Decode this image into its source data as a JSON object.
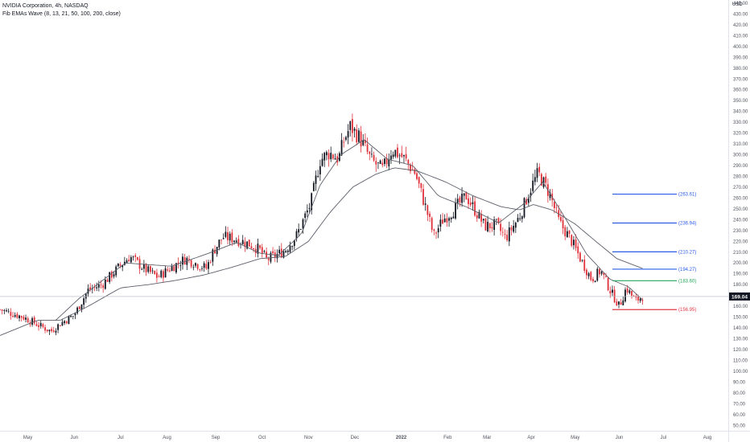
{
  "header": {
    "symbol_line": "NVIDIA Corporation, 4h, NASDAQ",
    "indicator_line": "Fib EMAs Wave (8, 13, 21, 50, 100, 200, close)"
  },
  "price_axis": {
    "currency": "USD"
  },
  "last_price": {
    "label": "169.04",
    "value": 169.04,
    "bg": "#131722",
    "fg": "#ffffff"
  },
  "colors": {
    "up": "#131722",
    "down": "#e0303a",
    "ema": "#5d606b",
    "blue_level": "#2b5ce6",
    "green_level": "#26a65b",
    "red_level": "#e53946",
    "grid": "#f0f3fa",
    "axis_text": "#50535e"
  },
  "chart_data": {
    "type": "candlestick",
    "ylim": [
      45,
      440
    ],
    "y_ticks": [
      "440.00",
      "430.00",
      "420.00",
      "410.00",
      "400.00",
      "390.00",
      "380.00",
      "370.00",
      "360.00",
      "350.00",
      "340.00",
      "330.00",
      "320.00",
      "310.00",
      "300.00",
      "290.00",
      "280.00",
      "270.00",
      "260.00",
      "250.00",
      "240.00",
      "230.00",
      "220.00",
      "210.00",
      "200.00",
      "190.00",
      "180.00",
      "170.00",
      "160.00",
      "150.00",
      "140.00",
      "130.00",
      "120.00",
      "110.00",
      "100.00",
      "90.00",
      "80.00",
      "70.00",
      "60.00",
      "50.00"
    ],
    "x_ticks": [
      {
        "label": "May",
        "t": 0.2
      },
      {
        "label": "Jun",
        "t": 1.2
      },
      {
        "label": "Jul",
        "t": 2.2
      },
      {
        "label": "Aug",
        "t": 3.2
      },
      {
        "label": "Sep",
        "t": 4.25
      },
      {
        "label": "Oct",
        "t": 5.25
      },
      {
        "label": "Nov",
        "t": 6.25
      },
      {
        "label": "Dec",
        "t": 7.25
      },
      {
        "label": "2022",
        "t": 8.25
      },
      {
        "label": "Feb",
        "t": 9.25
      },
      {
        "label": "Mar",
        "t": 10.1
      },
      {
        "label": "Apr",
        "t": 11.05
      },
      {
        "label": "May",
        "t": 12.0
      },
      {
        "label": "Jun",
        "t": 12.95
      },
      {
        "label": "Jul",
        "t": 13.9
      },
      {
        "label": "Aug",
        "t": 14.85
      }
    ],
    "x_range": [
      -0.4,
      15.3
    ],
    "price_anchors": [
      [
        -0.4,
        157
      ],
      [
        0.1,
        150
      ],
      [
        0.5,
        141
      ],
      [
        0.7,
        137
      ],
      [
        0.9,
        144
      ],
      [
        1.2,
        152
      ],
      [
        1.5,
        175
      ],
      [
        1.8,
        180
      ],
      [
        2.2,
        198
      ],
      [
        2.4,
        206
      ],
      [
        2.7,
        195
      ],
      [
        3.0,
        187
      ],
      [
        3.3,
        196
      ],
      [
        3.6,
        204
      ],
      [
        3.9,
        198
      ],
      [
        4.05,
        195
      ],
      [
        4.2,
        211
      ],
      [
        4.4,
        224
      ],
      [
        4.7,
        222
      ],
      [
        5.0,
        217
      ],
      [
        5.2,
        212
      ],
      [
        5.35,
        203
      ],
      [
        5.55,
        207
      ],
      [
        5.75,
        212
      ],
      [
        6.0,
        226
      ],
      [
        6.3,
        255
      ],
      [
        6.5,
        295
      ],
      [
        6.7,
        302
      ],
      [
        6.9,
        296
      ],
      [
        7.0,
        312
      ],
      [
        7.15,
        326
      ],
      [
        7.35,
        316
      ],
      [
        7.6,
        295
      ],
      [
        7.85,
        286
      ],
      [
        8.05,
        305
      ],
      [
        8.3,
        297
      ],
      [
        8.55,
        283
      ],
      [
        8.8,
        248
      ],
      [
        8.95,
        225
      ],
      [
        9.15,
        240
      ],
      [
        9.4,
        250
      ],
      [
        9.65,
        262
      ],
      [
        9.85,
        248
      ],
      [
        10.05,
        234
      ],
      [
        10.3,
        235
      ],
      [
        10.5,
        223
      ],
      [
        10.8,
        243
      ],
      [
        11.05,
        270
      ],
      [
        11.2,
        283
      ],
      [
        11.45,
        264
      ],
      [
        11.65,
        238
      ],
      [
        11.9,
        222
      ],
      [
        12.1,
        205
      ],
      [
        12.35,
        185
      ],
      [
        12.55,
        193
      ],
      [
        12.75,
        175
      ],
      [
        12.95,
        160
      ],
      [
        13.1,
        177
      ],
      [
        13.3,
        165
      ],
      [
        13.45,
        169
      ]
    ],
    "ema_anchors": [
      [
        -0.4,
        133
      ],
      [
        0.4,
        147
      ],
      [
        0.9,
        147
      ],
      [
        1.5,
        160
      ],
      [
        2.2,
        177
      ],
      [
        2.8,
        180
      ],
      [
        3.4,
        184
      ],
      [
        4.0,
        189
      ],
      [
        4.6,
        196
      ],
      [
        5.2,
        204
      ],
      [
        5.75,
        206
      ],
      [
        6.25,
        220
      ],
      [
        6.7,
        246
      ],
      [
        7.2,
        270
      ],
      [
        7.7,
        282
      ],
      [
        8.1,
        288
      ],
      [
        8.6,
        285
      ],
      [
        9.2,
        275
      ],
      [
        9.8,
        262
      ],
      [
        10.4,
        252
      ],
      [
        10.8,
        249
      ],
      [
        11.1,
        254
      ],
      [
        11.5,
        249
      ],
      [
        12.0,
        236
      ],
      [
        12.5,
        218
      ],
      [
        12.9,
        204
      ],
      [
        13.45,
        195
      ]
    ],
    "ema2_anchors": [
      [
        0.8,
        147
      ],
      [
        1.3,
        167
      ],
      [
        2.3,
        200
      ],
      [
        3.3,
        197
      ],
      [
        4.1,
        209
      ],
      [
        4.7,
        219
      ],
      [
        5.2,
        209
      ],
      [
        5.6,
        207
      ],
      [
        6.1,
        227
      ],
      [
        6.5,
        272
      ],
      [
        6.95,
        300
      ],
      [
        7.45,
        314
      ],
      [
        7.95,
        296
      ],
      [
        8.5,
        290
      ],
      [
        9.05,
        262
      ],
      [
        9.7,
        251
      ],
      [
        10.35,
        237
      ],
      [
        10.9,
        255
      ],
      [
        11.3,
        275
      ],
      [
        11.75,
        244
      ],
      [
        12.25,
        208
      ],
      [
        12.75,
        185
      ],
      [
        13.15,
        178
      ],
      [
        13.45,
        166
      ]
    ],
    "levels": [
      {
        "label": "(263.61)",
        "value": 263.61,
        "color": "blue",
        "x_from": 12.8,
        "x_to": 14.0
      },
      {
        "label": "(236.94)",
        "value": 236.94,
        "color": "blue",
        "x_from": 12.8,
        "x_to": 14.0
      },
      {
        "label": "(210.27)",
        "value": 210.27,
        "color": "blue",
        "x_from": 12.8,
        "x_to": 14.0
      },
      {
        "label": "(194.27)",
        "value": 194.27,
        "color": "blue",
        "x_from": 12.8,
        "x_to": 14.0
      },
      {
        "label": "(183.60)",
        "value": 183.6,
        "color": "green",
        "x_from": 12.8,
        "x_to": 14.0
      },
      {
        "label": "(156.95)",
        "value": 156.95,
        "color": "red",
        "x_from": 12.8,
        "x_to": 14.0
      }
    ]
  }
}
